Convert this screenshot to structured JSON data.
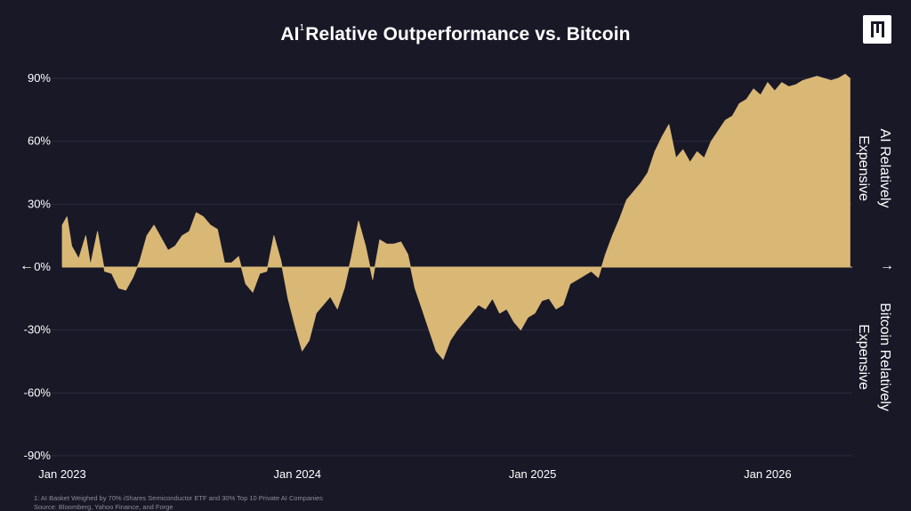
{
  "header": {
    "title_prefix": "AI",
    "title_superscript": "1",
    "title_rest": "Relative Outperformance vs. Bitcoin"
  },
  "annotations": {
    "upper_label_line1": "AI Relatively",
    "upper_label_line2": "Expensive",
    "lower_label_line1": "Bitcoin Relatively",
    "lower_label_line2": "Expensive",
    "left_arrow": "←",
    "right_arrow": "→"
  },
  "footnotes": {
    "note": "1: AI Basket Weighed by 70% iShares Semiconductor ETF and 30% Top 10 Private AI Companies",
    "source": "Source: Bloomberg, Yahoo Finance, and Forge"
  },
  "colors": {
    "background": "#181827",
    "area_fill": "#d9b775",
    "grid": "#2b2b40",
    "text": "#ffffff"
  },
  "chart_data": {
    "type": "area",
    "title": "AI Relative Outperformance vs. Bitcoin",
    "xlabel": "",
    "ylabel": "",
    "ylim": [
      -90,
      90
    ],
    "y_ticks": [
      90,
      60,
      30,
      0,
      -30,
      -60,
      -90
    ],
    "y_tick_labels": [
      "90%",
      "60%",
      "30%",
      "0%",
      "-30%",
      "-60%",
      "-90%"
    ],
    "x_tick_labels": [
      "Jan 2023",
      "Jan 2024",
      "Jan 2025",
      "Jan 2026"
    ],
    "x_tick_values": [
      2023.0,
      2024.0,
      2025.0,
      2026.0
    ],
    "xlim": [
      2023.0,
      2026.36
    ],
    "grid": true,
    "series": [
      {
        "x": [
          2023.0,
          2023.02,
          2023.04,
          2023.07,
          2023.1,
          2023.12,
          2023.15,
          2023.18,
          2023.21,
          2023.24,
          2023.27,
          2023.3,
          2023.33,
          2023.36,
          2023.39,
          2023.42,
          2023.45,
          2023.48,
          2023.51,
          2023.54,
          2023.57,
          2023.6,
          2023.63,
          2023.66,
          2023.69,
          2023.72,
          2023.75,
          2023.78,
          2023.81,
          2023.84,
          2023.87,
          2023.9,
          2023.93,
          2023.96,
          2023.99,
          2024.02,
          2024.05,
          2024.08,
          2024.11,
          2024.14,
          2024.17,
          2024.2,
          2024.23,
          2024.26,
          2024.29,
          2024.32,
          2024.35,
          2024.38,
          2024.41,
          2024.44,
          2024.47,
          2024.5,
          2024.53,
          2024.56,
          2024.59,
          2024.62,
          2024.65,
          2024.68,
          2024.71,
          2024.74,
          2024.77,
          2024.8,
          2024.83,
          2024.86,
          2024.89,
          2024.92,
          2024.95,
          2024.98,
          2025.01,
          2025.04,
          2025.07,
          2025.1,
          2025.13,
          2025.16,
          2025.19,
          2025.22,
          2025.25,
          2025.28,
          2025.31,
          2025.34,
          2025.37,
          2025.4,
          2025.43,
          2025.46,
          2025.49,
          2025.52,
          2025.55,
          2025.58,
          2025.61,
          2025.64,
          2025.67,
          2025.7,
          2025.73,
          2025.76,
          2025.79,
          2025.82,
          2025.85,
          2025.88,
          2025.91,
          2025.94,
          2025.97,
          2026.0,
          2026.03,
          2026.06,
          2026.09,
          2026.12,
          2026.15,
          2026.18,
          2026.21,
          2026.24,
          2026.27,
          2026.3,
          2026.33,
          2026.35
        ],
        "y": [
          20,
          24,
          10,
          4,
          15,
          1,
          17,
          -2,
          -3,
          -10,
          -11,
          -5,
          3,
          15,
          20,
          14,
          8,
          10,
          15,
          17,
          26,
          24,
          20,
          18,
          2,
          2,
          5,
          -8,
          -12,
          -3,
          -2,
          15,
          3,
          -15,
          -28,
          -40,
          -35,
          -22,
          -18,
          -14,
          -20,
          -10,
          5,
          22,
          10,
          -6,
          13,
          11,
          11,
          12,
          6,
          -10,
          -20,
          -30,
          -40,
          -44,
          -35,
          -30,
          -26,
          -22,
          -18,
          -20,
          -15,
          -22,
          -20,
          -26,
          -30,
          -24,
          -22,
          -16,
          -15,
          -20,
          -18,
          -8,
          -6,
          -4,
          -2,
          -5,
          6,
          15,
          23,
          32,
          36,
          40,
          45,
          55,
          62,
          68,
          52,
          56,
          50,
          55,
          52,
          60,
          65,
          70,
          72,
          78,
          80,
          85,
          82,
          88,
          84,
          88,
          86,
          87,
          89,
          90,
          91,
          90,
          89,
          90,
          92,
          90
        ]
      }
    ]
  }
}
